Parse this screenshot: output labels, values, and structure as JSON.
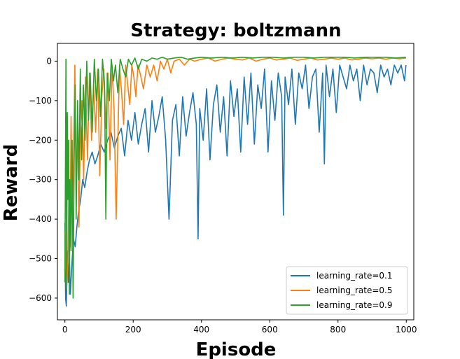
{
  "chart_data": {
    "type": "line",
    "title": "Strategy: boltzmann",
    "xlabel": "Episode",
    "ylabel": "Reward",
    "xlim": [
      -22,
      1022
    ],
    "ylim": [
      -655,
      45
    ],
    "xticks": [
      0,
      200,
      400,
      600,
      800,
      1000
    ],
    "yticks": [
      0,
      -100,
      -200,
      -300,
      -400,
      -500,
      -600
    ],
    "grid": false,
    "legend_position": "lower right",
    "series": [
      {
        "name": "learning_rate=0.1",
        "color": "#1f77b4",
        "x": [
          0,
          2,
          4,
          6,
          8,
          10,
          13,
          16,
          20,
          25,
          30,
          35,
          40,
          46,
          52,
          58,
          65,
          72,
          80,
          88,
          96,
          105,
          115,
          125,
          135,
          145,
          155,
          165,
          175,
          185,
          195,
          205,
          215,
          225,
          235,
          245,
          255,
          265,
          275,
          285,
          295,
          305,
          315,
          325,
          335,
          345,
          355,
          365,
          375,
          385,
          390,
          395,
          405,
          415,
          425,
          435,
          445,
          455,
          465,
          475,
          485,
          495,
          505,
          515,
          525,
          535,
          545,
          555,
          565,
          575,
          585,
          595,
          605,
          615,
          625,
          635,
          640,
          645,
          655,
          665,
          675,
          685,
          695,
          705,
          715,
          725,
          735,
          745,
          755,
          760,
          765,
          775,
          785,
          795,
          805,
          815,
          825,
          835,
          845,
          855,
          865,
          875,
          885,
          895,
          905,
          915,
          925,
          935,
          945,
          955,
          965,
          975,
          985,
          995,
          999
        ],
        "y": [
          -410,
          -600,
          -620,
          -540,
          -480,
          -560,
          -500,
          -590,
          -520,
          -450,
          -470,
          -420,
          -380,
          -350,
          -300,
          -320,
          -280,
          -250,
          -230,
          -260,
          -240,
          -210,
          -230,
          -200,
          -180,
          -220,
          -190,
          -170,
          -240,
          -150,
          -200,
          -130,
          -210,
          -160,
          -120,
          -230,
          -100,
          -180,
          -140,
          -90,
          -200,
          -400,
          -150,
          -110,
          -240,
          -90,
          -190,
          -130,
          -80,
          -160,
          -450,
          -120,
          -200,
          -70,
          -250,
          -110,
          -60,
          -180,
          -90,
          -240,
          -50,
          -140,
          -70,
          -230,
          -40,
          -160,
          -30,
          -210,
          -60,
          -120,
          -20,
          -230,
          -50,
          -150,
          -30,
          -90,
          -390,
          -40,
          -110,
          -20,
          -160,
          -30,
          -70,
          -10,
          -120,
          -40,
          -20,
          -180,
          -30,
          -260,
          -10,
          -90,
          -20,
          -130,
          -10,
          -40,
          -70,
          -10,
          -50,
          -20,
          -100,
          -10,
          -60,
          -20,
          -30,
          -80,
          -10,
          -40,
          -20,
          -60,
          -10,
          -30,
          -10,
          -50,
          -10
        ]
      },
      {
        "name": "learning_rate=0.5",
        "color": "#ff7f0e",
        "x": [
          0,
          3,
          6,
          9,
          12,
          15,
          18,
          21,
          25,
          29,
          33,
          37,
          41,
          45,
          50,
          55,
          60,
          66,
          72,
          78,
          84,
          90,
          96,
          102,
          108,
          114,
          120,
          126,
          132,
          138,
          144,
          150,
          155,
          160,
          166,
          172,
          178,
          184,
          190,
          196,
          202,
          208,
          214,
          220,
          230,
          240,
          250,
          260,
          270,
          280,
          290,
          300,
          310,
          320,
          335,
          350,
          365,
          380,
          400,
          420,
          440,
          460,
          480,
          500,
          520,
          540,
          560,
          580,
          600,
          620,
          640,
          660,
          680,
          700,
          720,
          740,
          760,
          780,
          800,
          820,
          840,
          860,
          880,
          900,
          920,
          940,
          960,
          980,
          999
        ],
        "y": [
          -430,
          -520,
          -560,
          -500,
          -300,
          -470,
          -140,
          -380,
          -260,
          -10,
          -330,
          -160,
          -420,
          -200,
          -100,
          -300,
          -40,
          -250,
          -30,
          -200,
          -60,
          -180,
          -20,
          -290,
          -90,
          -20,
          -170,
          -30,
          -250,
          -10,
          -120,
          -400,
          -200,
          -10,
          -80,
          -160,
          -10,
          -60,
          -110,
          -10,
          -40,
          -90,
          -10,
          -30,
          -70,
          -10,
          -40,
          -10,
          -50,
          0,
          -20,
          5,
          -30,
          0,
          5,
          -10,
          5,
          0,
          5,
          8,
          0,
          5,
          8,
          5,
          3,
          8,
          0,
          5,
          8,
          3,
          5,
          8,
          2,
          5,
          8,
          3,
          5,
          8,
          5,
          8,
          3,
          5,
          8,
          6,
          8,
          5,
          8,
          6,
          8
        ]
      },
      {
        "name": "learning_rate=0.9",
        "color": "#2ca02c",
        "x": [
          0,
          3,
          5,
          7,
          9,
          11,
          13,
          15,
          18,
          21,
          24,
          27,
          30,
          33,
          37,
          41,
          45,
          49,
          54,
          59,
          64,
          69,
          74,
          80,
          86,
          92,
          98,
          104,
          110,
          116,
          120,
          124,
          130,
          136,
          142,
          148,
          155,
          162,
          170,
          178,
          186,
          195,
          205,
          215,
          225,
          240,
          255,
          270,
          285,
          300,
          320,
          340,
          360,
          380,
          400,
          430,
          460,
          490,
          520,
          550,
          580,
          610,
          640,
          670,
          700,
          730,
          760,
          790,
          820,
          850,
          880,
          910,
          940,
          970,
          999
        ],
        "y": [
          -560,
          5,
          -580,
          -130,
          -350,
          -200,
          -590,
          -300,
          -480,
          -200,
          -600,
          -250,
          -60,
          -400,
          -100,
          -300,
          -20,
          -250,
          -60,
          -200,
          0,
          -150,
          -30,
          -180,
          5,
          -100,
          -20,
          -140,
          5,
          -60,
          -400,
          -30,
          -100,
          5,
          -50,
          -10,
          -80,
          5,
          -20,
          -40,
          5,
          -10,
          8,
          -20,
          5,
          0,
          8,
          5,
          10,
          5,
          8,
          10,
          5,
          8,
          10,
          8,
          10,
          8,
          10,
          8,
          10,
          10,
          8,
          10,
          10,
          8,
          10,
          10,
          10,
          8,
          10,
          10,
          10,
          8,
          10
        ]
      }
    ]
  }
}
